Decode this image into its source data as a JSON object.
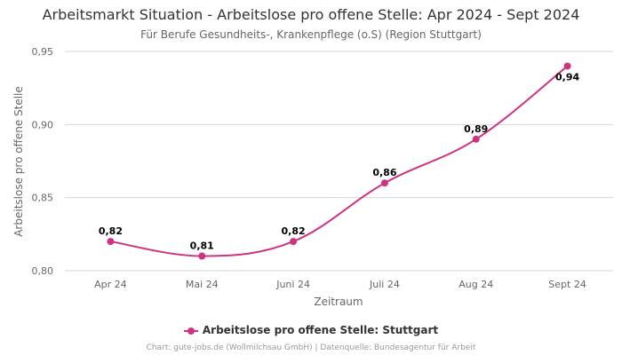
{
  "chart_data": {
    "type": "line",
    "title": "Arbeitsmarkt Situation - Arbeitslose pro offene Stelle: Apr 2024 - Sept 2024",
    "subtitle": "Für Berufe Gesundheits-, Krankenpflege (o.S) (Region Stuttgart)",
    "xlabel": "Zeitraum",
    "ylabel": "Arbeitslose pro offene Stelle",
    "categories": [
      "Apr 24",
      "Mai 24",
      "Juni 24",
      "Juli 24",
      "Aug 24",
      "Sept 24"
    ],
    "series": [
      {
        "name": "Arbeitslose pro offene Stelle: Stuttgart",
        "values": [
          0.82,
          0.81,
          0.82,
          0.86,
          0.89,
          0.94
        ],
        "labels": [
          "0,82",
          "0,81",
          "0,82",
          "0,86",
          "0,89",
          "0,94"
        ],
        "color": "#cc3380"
      }
    ],
    "ylim": [
      0.8,
      0.95
    ],
    "yticks": [
      0.8,
      0.85,
      0.9,
      0.95
    ],
    "ytick_labels": [
      "0,80",
      "0,85",
      "0,90",
      "0,95"
    ],
    "grid": true,
    "legend_position": "bottom-center"
  },
  "credit": "Chart: gute-jobs.de (Wollmilchsau GmbH) | Datenquelle: Bundesagentur für Arbeit"
}
